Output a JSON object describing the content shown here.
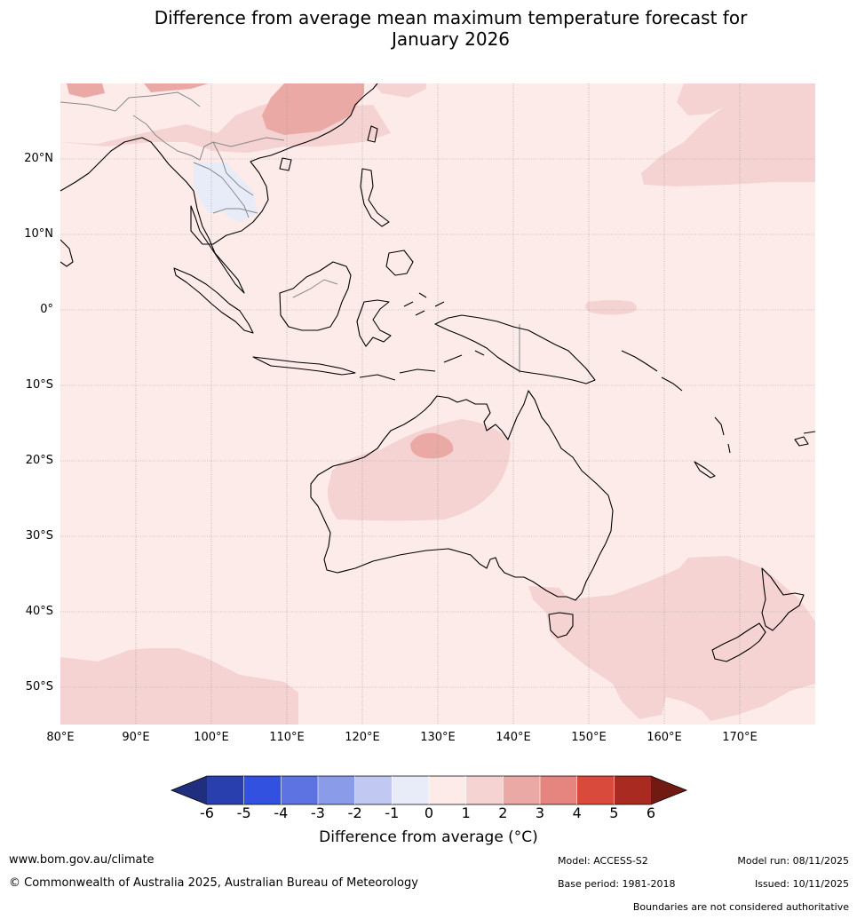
{
  "title": {
    "line1": "Difference from average mean maximum temperature forecast for",
    "line2": "January 2026"
  },
  "map": {
    "lat_labels": [
      "20°N",
      "10°N",
      "0°",
      "10°S",
      "20°S",
      "30°S",
      "40°S",
      "50°S"
    ],
    "lon_labels": [
      "80°E",
      "90°E",
      "100°E",
      "110°E",
      "120°E",
      "130°E",
      "140°E",
      "150°E",
      "160°E",
      "170°E"
    ],
    "colors": {
      "background_0_1": "#fcebe9",
      "band_1_2": "#f4d3d2",
      "band_2_3": "#eba9a6",
      "band_neg1_0": "#e8ecf9",
      "coastline": "#000000",
      "borders": "#888888",
      "grid": "#999999"
    }
  },
  "colorbar": {
    "ticks": [
      "-6",
      "-5",
      "-4",
      "-3",
      "-2",
      "-1",
      "0",
      "1",
      "2",
      "3",
      "4",
      "5",
      "6"
    ],
    "colors": [
      "#1f2f7d",
      "#2a3fae",
      "#3251e0",
      "#5d73e2",
      "#8a9bea",
      "#c1c8f2",
      "#e8ecf9",
      "#fcebe9",
      "#f4d3d2",
      "#eba9a6",
      "#e6857f",
      "#d94a3d",
      "#a82a20",
      "#711a14"
    ],
    "label": "Difference from average (°C)"
  },
  "footer": {
    "website": "www.bom.gov.au/climate",
    "copyright": "© Commonwealth of Australia 2025, Australian Bureau of Meteorology",
    "model": "Model: ACCESS-S2",
    "base_period": "Base period: 1981-2018",
    "model_run": "Model run: 08/11/2025",
    "issued": "Issued: 10/11/2025",
    "disclaimer": "Boundaries are not considered authoritative"
  }
}
